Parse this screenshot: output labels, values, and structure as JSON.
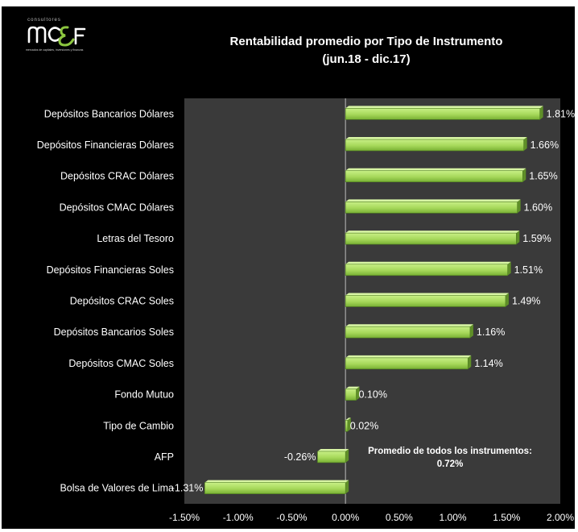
{
  "logo": {
    "top_text": "consultores",
    "sub_text": "mercados de capitales, inversiones y finanzas",
    "mark_color": "#ffffff",
    "accent_color": "#8cc63f"
  },
  "colors": {
    "background": "#000000",
    "plot_area": "#3a3a3a",
    "bar_fill": "#a6d85a",
    "bar_edge": "#4e7d1e",
    "text": "#ffffff"
  },
  "chart_data": {
    "type": "bar",
    "orientation": "horizontal",
    "title": "Rentabilidad promedio por Tipo de Instrumento",
    "subtitle": "(jun.18 - dic.17)",
    "categories": [
      "Depósitos Bancarios Dólares",
      "Depósitos Financieras Dólares",
      "Depósitos CRAC Dólares",
      "Depósitos CMAC Dólares",
      "Letras del Tesoro",
      "Depósitos Financieras Soles",
      "Depósitos CRAC Soles",
      "Depósitos Bancarios Soles",
      "Depósitos CMAC Soles",
      "Fondo Mutuo",
      "Tipo de Cambio",
      "AFP",
      "Bolsa de Valores de Lima"
    ],
    "values": [
      1.81,
      1.66,
      1.65,
      1.6,
      1.59,
      1.51,
      1.49,
      1.16,
      1.14,
      0.1,
      0.02,
      -0.26,
      -1.31
    ],
    "value_labels": [
      "1.81%",
      "1.66%",
      "1.65%",
      "1.60%",
      "1.59%",
      "1.51%",
      "1.49%",
      "1.16%",
      "1.14%",
      "0.10%",
      "0.02%",
      "-0.26%",
      "-1.31%"
    ],
    "xlim": [
      -1.5,
      2.0
    ],
    "xticks": [
      -1.5,
      -1.0,
      -0.5,
      0.0,
      0.5,
      1.0,
      1.5,
      2.0
    ],
    "xtick_labels": [
      "-1.50%",
      "-1.00%",
      "-0.50%",
      "0.00%",
      "0.50%",
      "1.00%",
      "1.50%",
      "2.00%"
    ],
    "grid": false,
    "legend": "none",
    "annotation": {
      "line1": "Promedio de todos los instrumentos:",
      "line2": "0.72%"
    }
  }
}
